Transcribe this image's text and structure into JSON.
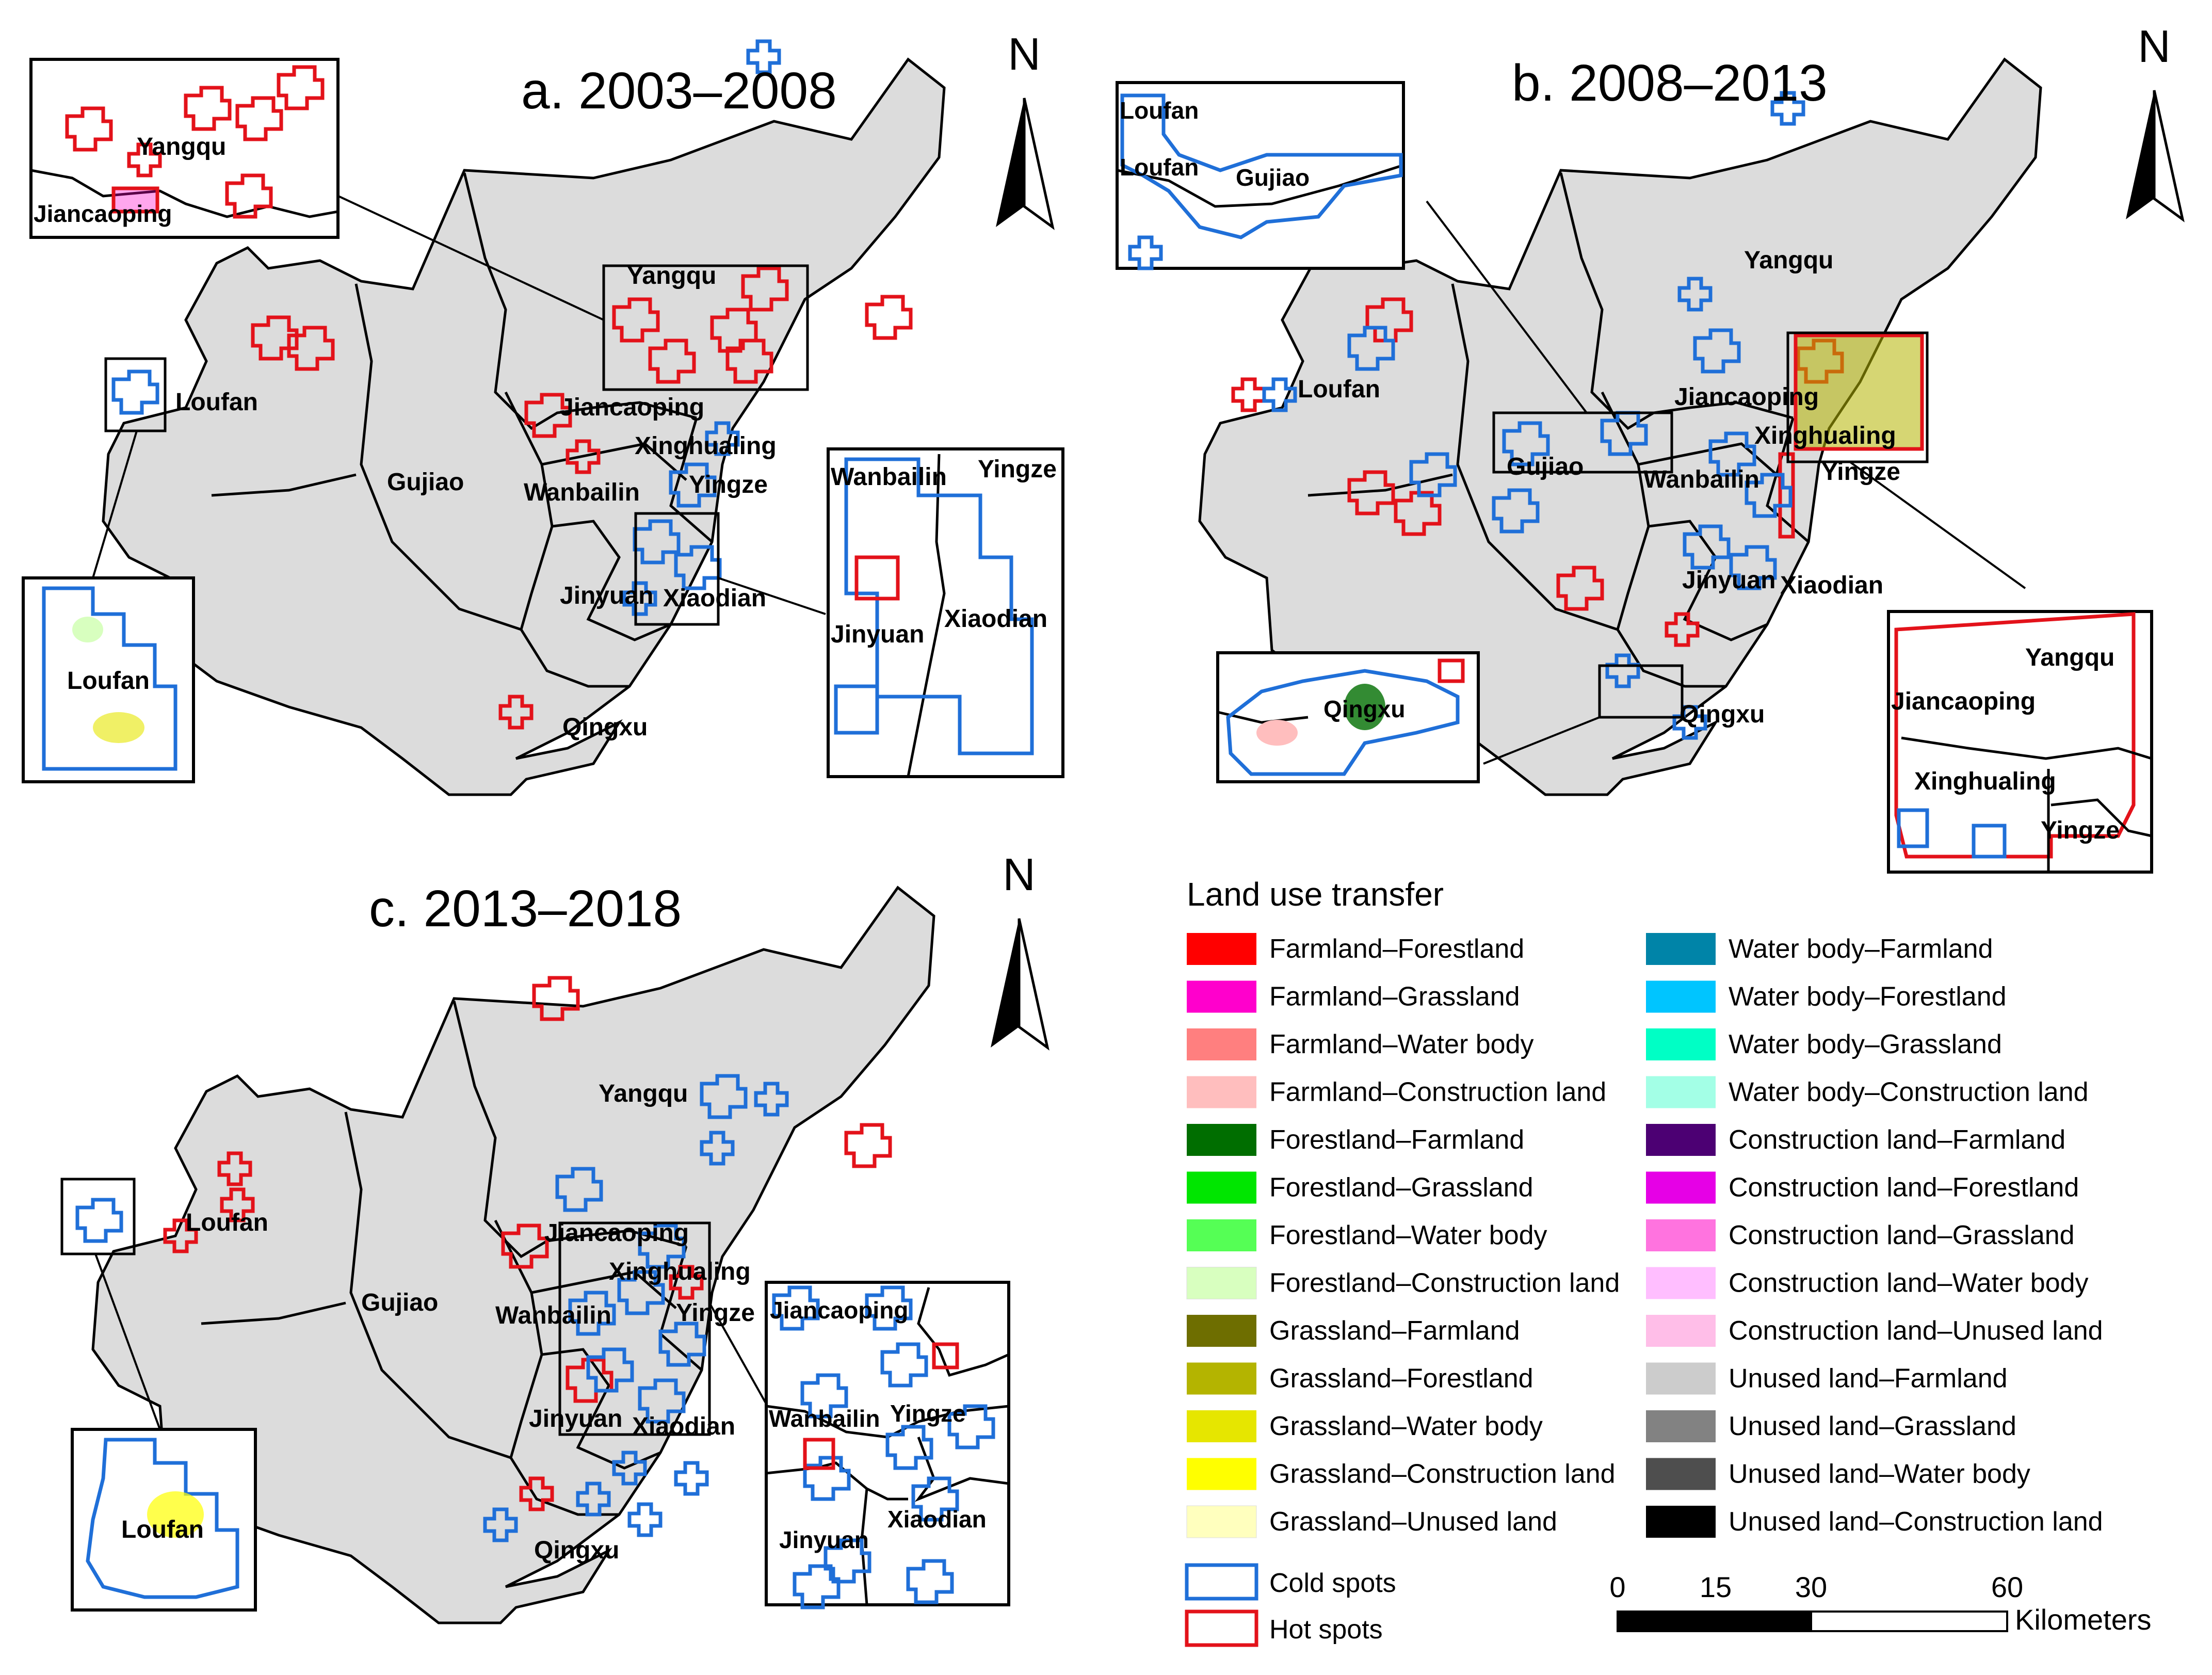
{
  "panels": [
    {
      "title": "a. 2003–2008",
      "north": "N"
    },
    {
      "title": "b. 2008–2013",
      "north": "N"
    },
    {
      "title": "c. 2013–2018",
      "north": "N"
    }
  ],
  "towns": {
    "yangqu": "Yangqu",
    "loufan": "Loufan",
    "gujiao": "Gujiao",
    "jiancaoping": "Jiancaoping",
    "wanbailin": "Wanbailin",
    "xinghualing": "Xinghualing",
    "yingze": "Yingze",
    "jinyuan": "Jinyuan",
    "xiaodian": "Xiaodian",
    "qingxu": "Qingxu"
  },
  "legend": {
    "title": "Land use transfer",
    "items_left": [
      {
        "label": "Farmland–Forestland",
        "color": "#ff0000"
      },
      {
        "label": "Farmland–Grassland",
        "color": "#ff00cc"
      },
      {
        "label": "Farmland–Water body",
        "color": "#ff7f7f"
      },
      {
        "label": "Farmland–Construction land",
        "color": "#ffbebe"
      },
      {
        "label": "Forestland–Farmland",
        "color": "#006e00"
      },
      {
        "label": "Forestland–Grassland",
        "color": "#00e600"
      },
      {
        "label": "Forestland–Water body",
        "color": "#55ff55"
      },
      {
        "label": "Forestland–Construction land",
        "color": "#d8ffbf"
      },
      {
        "label": "Grassland–Farmland",
        "color": "#6e6e00"
      },
      {
        "label": "Grassland–Forestland",
        "color": "#b4b400"
      },
      {
        "label": "Grassland–Water body",
        "color": "#e6e600"
      },
      {
        "label": "Grassland–Construction land",
        "color": "#ffff00"
      },
      {
        "label": "Grassland–Unused land",
        "color": "#ffffbe"
      }
    ],
    "items_right": [
      {
        "label": "Water body–Farmland",
        "color": "#0084a8"
      },
      {
        "label": "Water body–Forestland",
        "color": "#00c5ff"
      },
      {
        "label": "Water body–Grassland",
        "color": "#00ffc5"
      },
      {
        "label": "Water body–Construction land",
        "color": "#a3ffe6"
      },
      {
        "label": "Construction land–Farmland",
        "color": "#4c0073"
      },
      {
        "label": "Construction land–Forestland",
        "color": "#e600e6"
      },
      {
        "label": "Construction land–Grassland",
        "color": "#ff73df"
      },
      {
        "label": "Construction land–Water body",
        "color": "#ffbeff"
      },
      {
        "label": "Construction land–Unused land",
        "color": "#ffbee8"
      },
      {
        "label": "Unused land–Farmland",
        "color": "#cccccc"
      },
      {
        "label": "Unused land–Grassland",
        "color": "#828282"
      },
      {
        "label": "Unused land–Water body",
        "color": "#4e4e4e"
      },
      {
        "label": "Unused land–Construction land",
        "color": "#000000"
      }
    ],
    "cold_spots": "Cold spots",
    "hot_spots": "Hot spots",
    "cold_color": "#1f6fd8",
    "hot_color": "#e3121a"
  },
  "scale": {
    "ticks": [
      "0",
      "15",
      "30",
      "60"
    ],
    "unit": "Kilometers"
  }
}
